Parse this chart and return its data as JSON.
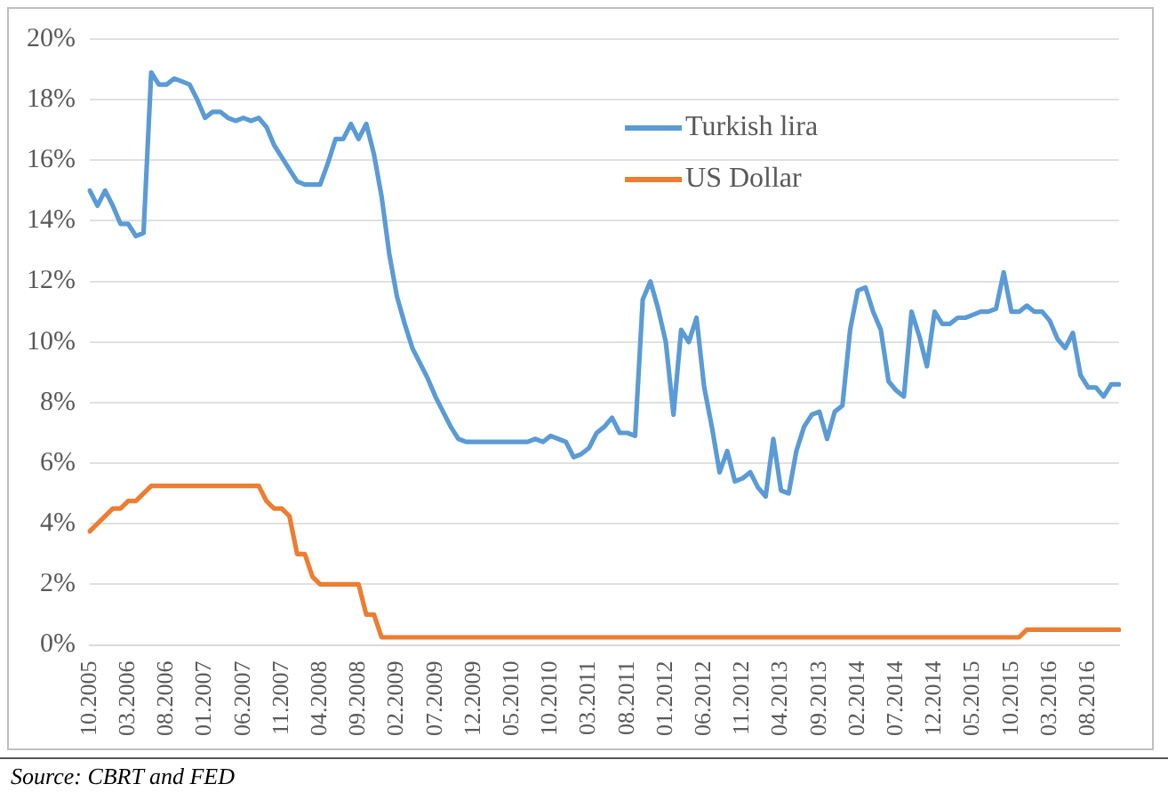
{
  "chart_data": {
    "type": "line",
    "categories": [
      "10.2005",
      null,
      null,
      null,
      null,
      "03.2006",
      null,
      null,
      null,
      null,
      "08.2006",
      null,
      null,
      null,
      null,
      "01.2007",
      null,
      null,
      null,
      null,
      "06.2007",
      null,
      null,
      null,
      null,
      "11.2007",
      null,
      null,
      null,
      null,
      "04.2008",
      null,
      null,
      null,
      null,
      "09.2008",
      null,
      null,
      null,
      null,
      "02.2009",
      null,
      null,
      null,
      null,
      "07.2009",
      null,
      null,
      null,
      null,
      "12.2009",
      null,
      null,
      null,
      null,
      "05.2010",
      null,
      null,
      null,
      null,
      "10.2010",
      null,
      null,
      null,
      null,
      "03.2011",
      null,
      null,
      null,
      null,
      "08.2011",
      null,
      null,
      null,
      null,
      "01.2012",
      null,
      null,
      null,
      null,
      "06.2012",
      null,
      null,
      null,
      null,
      "11.2012",
      null,
      null,
      null,
      null,
      "04.2013",
      null,
      null,
      null,
      null,
      "09.2013",
      null,
      null,
      null,
      null,
      "02.2014",
      null,
      null,
      null,
      null,
      "07.2014",
      null,
      null,
      null,
      null,
      "12.2014",
      null,
      null,
      null,
      null,
      "05.2015",
      null,
      null,
      null,
      null,
      "10.2015",
      null,
      null,
      null,
      null,
      "03.2016",
      null,
      null,
      null,
      null,
      "08.2016",
      null,
      null,
      null,
      null
    ],
    "series": [
      {
        "name": "Turkish lira",
        "color": "#5b9bd5",
        "values": [
          15.0,
          14.5,
          15.0,
          14.5,
          13.9,
          13.9,
          13.5,
          13.6,
          18.9,
          18.5,
          18.5,
          18.7,
          18.6,
          18.5,
          18.0,
          17.4,
          17.6,
          17.6,
          17.4,
          17.3,
          17.4,
          17.3,
          17.4,
          17.1,
          16.5,
          16.1,
          15.7,
          15.3,
          15.2,
          15.2,
          15.2,
          15.9,
          16.7,
          16.7,
          17.2,
          16.7,
          17.2,
          16.2,
          14.8,
          12.9,
          11.5,
          10.6,
          9.8,
          9.3,
          8.8,
          8.2,
          7.7,
          7.2,
          6.8,
          6.7,
          6.7,
          6.7,
          6.7,
          6.7,
          6.7,
          6.7,
          6.7,
          6.7,
          6.8,
          6.7,
          6.9,
          6.8,
          6.7,
          6.2,
          6.3,
          6.5,
          7.0,
          7.2,
          7.5,
          7.0,
          7.0,
          6.9,
          11.4,
          12.0,
          11.1,
          10.0,
          7.6,
          10.4,
          10.0,
          10.8,
          8.5,
          7.2,
          5.7,
          6.4,
          5.4,
          5.5,
          5.7,
          5.2,
          4.9,
          6.8,
          5.1,
          5.0,
          6.4,
          7.2,
          7.6,
          7.7,
          6.8,
          7.7,
          7.9,
          10.4,
          11.7,
          11.8,
          11.0,
          10.4,
          8.7,
          8.4,
          8.2,
          11.0,
          10.2,
          9.2,
          11.0,
          10.6,
          10.6,
          10.8,
          10.8,
          10.9,
          11.0,
          11.0,
          11.1,
          12.3,
          11.0,
          11.0,
          11.2,
          11.0,
          11.0,
          10.7,
          10.1,
          9.8,
          10.3,
          8.9,
          8.5,
          8.5,
          8.2,
          8.6,
          8.6
        ]
      },
      {
        "name": "US Dollar",
        "color": "#ed7d31",
        "values": [
          3.75,
          4.0,
          4.25,
          4.5,
          4.5,
          4.75,
          4.75,
          5.0,
          5.25,
          5.25,
          5.25,
          5.25,
          5.25,
          5.25,
          5.25,
          5.25,
          5.25,
          5.25,
          5.25,
          5.25,
          5.25,
          5.25,
          5.25,
          4.75,
          4.5,
          4.5,
          4.25,
          3.0,
          3.0,
          2.25,
          2.0,
          2.0,
          2.0,
          2.0,
          2.0,
          2.0,
          1.0,
          1.0,
          0.25,
          0.25,
          0.25,
          0.25,
          0.25,
          0.25,
          0.25,
          0.25,
          0.25,
          0.25,
          0.25,
          0.25,
          0.25,
          0.25,
          0.25,
          0.25,
          0.25,
          0.25,
          0.25,
          0.25,
          0.25,
          0.25,
          0.25,
          0.25,
          0.25,
          0.25,
          0.25,
          0.25,
          0.25,
          0.25,
          0.25,
          0.25,
          0.25,
          0.25,
          0.25,
          0.25,
          0.25,
          0.25,
          0.25,
          0.25,
          0.25,
          0.25,
          0.25,
          0.25,
          0.25,
          0.25,
          0.25,
          0.25,
          0.25,
          0.25,
          0.25,
          0.25,
          0.25,
          0.25,
          0.25,
          0.25,
          0.25,
          0.25,
          0.25,
          0.25,
          0.25,
          0.25,
          0.25,
          0.25,
          0.25,
          0.25,
          0.25,
          0.25,
          0.25,
          0.25,
          0.25,
          0.25,
          0.25,
          0.25,
          0.25,
          0.25,
          0.25,
          0.25,
          0.25,
          0.25,
          0.25,
          0.25,
          0.25,
          0.25,
          0.5,
          0.5,
          0.5,
          0.5,
          0.5,
          0.5,
          0.5,
          0.5,
          0.5,
          0.5,
          0.5,
          0.5,
          0.5
        ]
      }
    ],
    "ylim": [
      0,
      20
    ],
    "yticks": [
      {
        "value": 0,
        "label": "0%"
      },
      {
        "value": 2,
        "label": "2%"
      },
      {
        "value": 4,
        "label": "4%"
      },
      {
        "value": 6,
        "label": "6%"
      },
      {
        "value": 8,
        "label": "8%"
      },
      {
        "value": 10,
        "label": "10%"
      },
      {
        "value": 12,
        "label": "12%"
      },
      {
        "value": 14,
        "label": "14%"
      },
      {
        "value": 16,
        "label": "16%"
      },
      {
        "value": 18,
        "label": "18%"
      },
      {
        "value": 20,
        "label": "20%"
      }
    ],
    "grid": "y",
    "legend": "top right",
    "marker": "none",
    "line_style": "solid",
    "annotations": [
      "Source: CBRT and FED"
    ]
  }
}
